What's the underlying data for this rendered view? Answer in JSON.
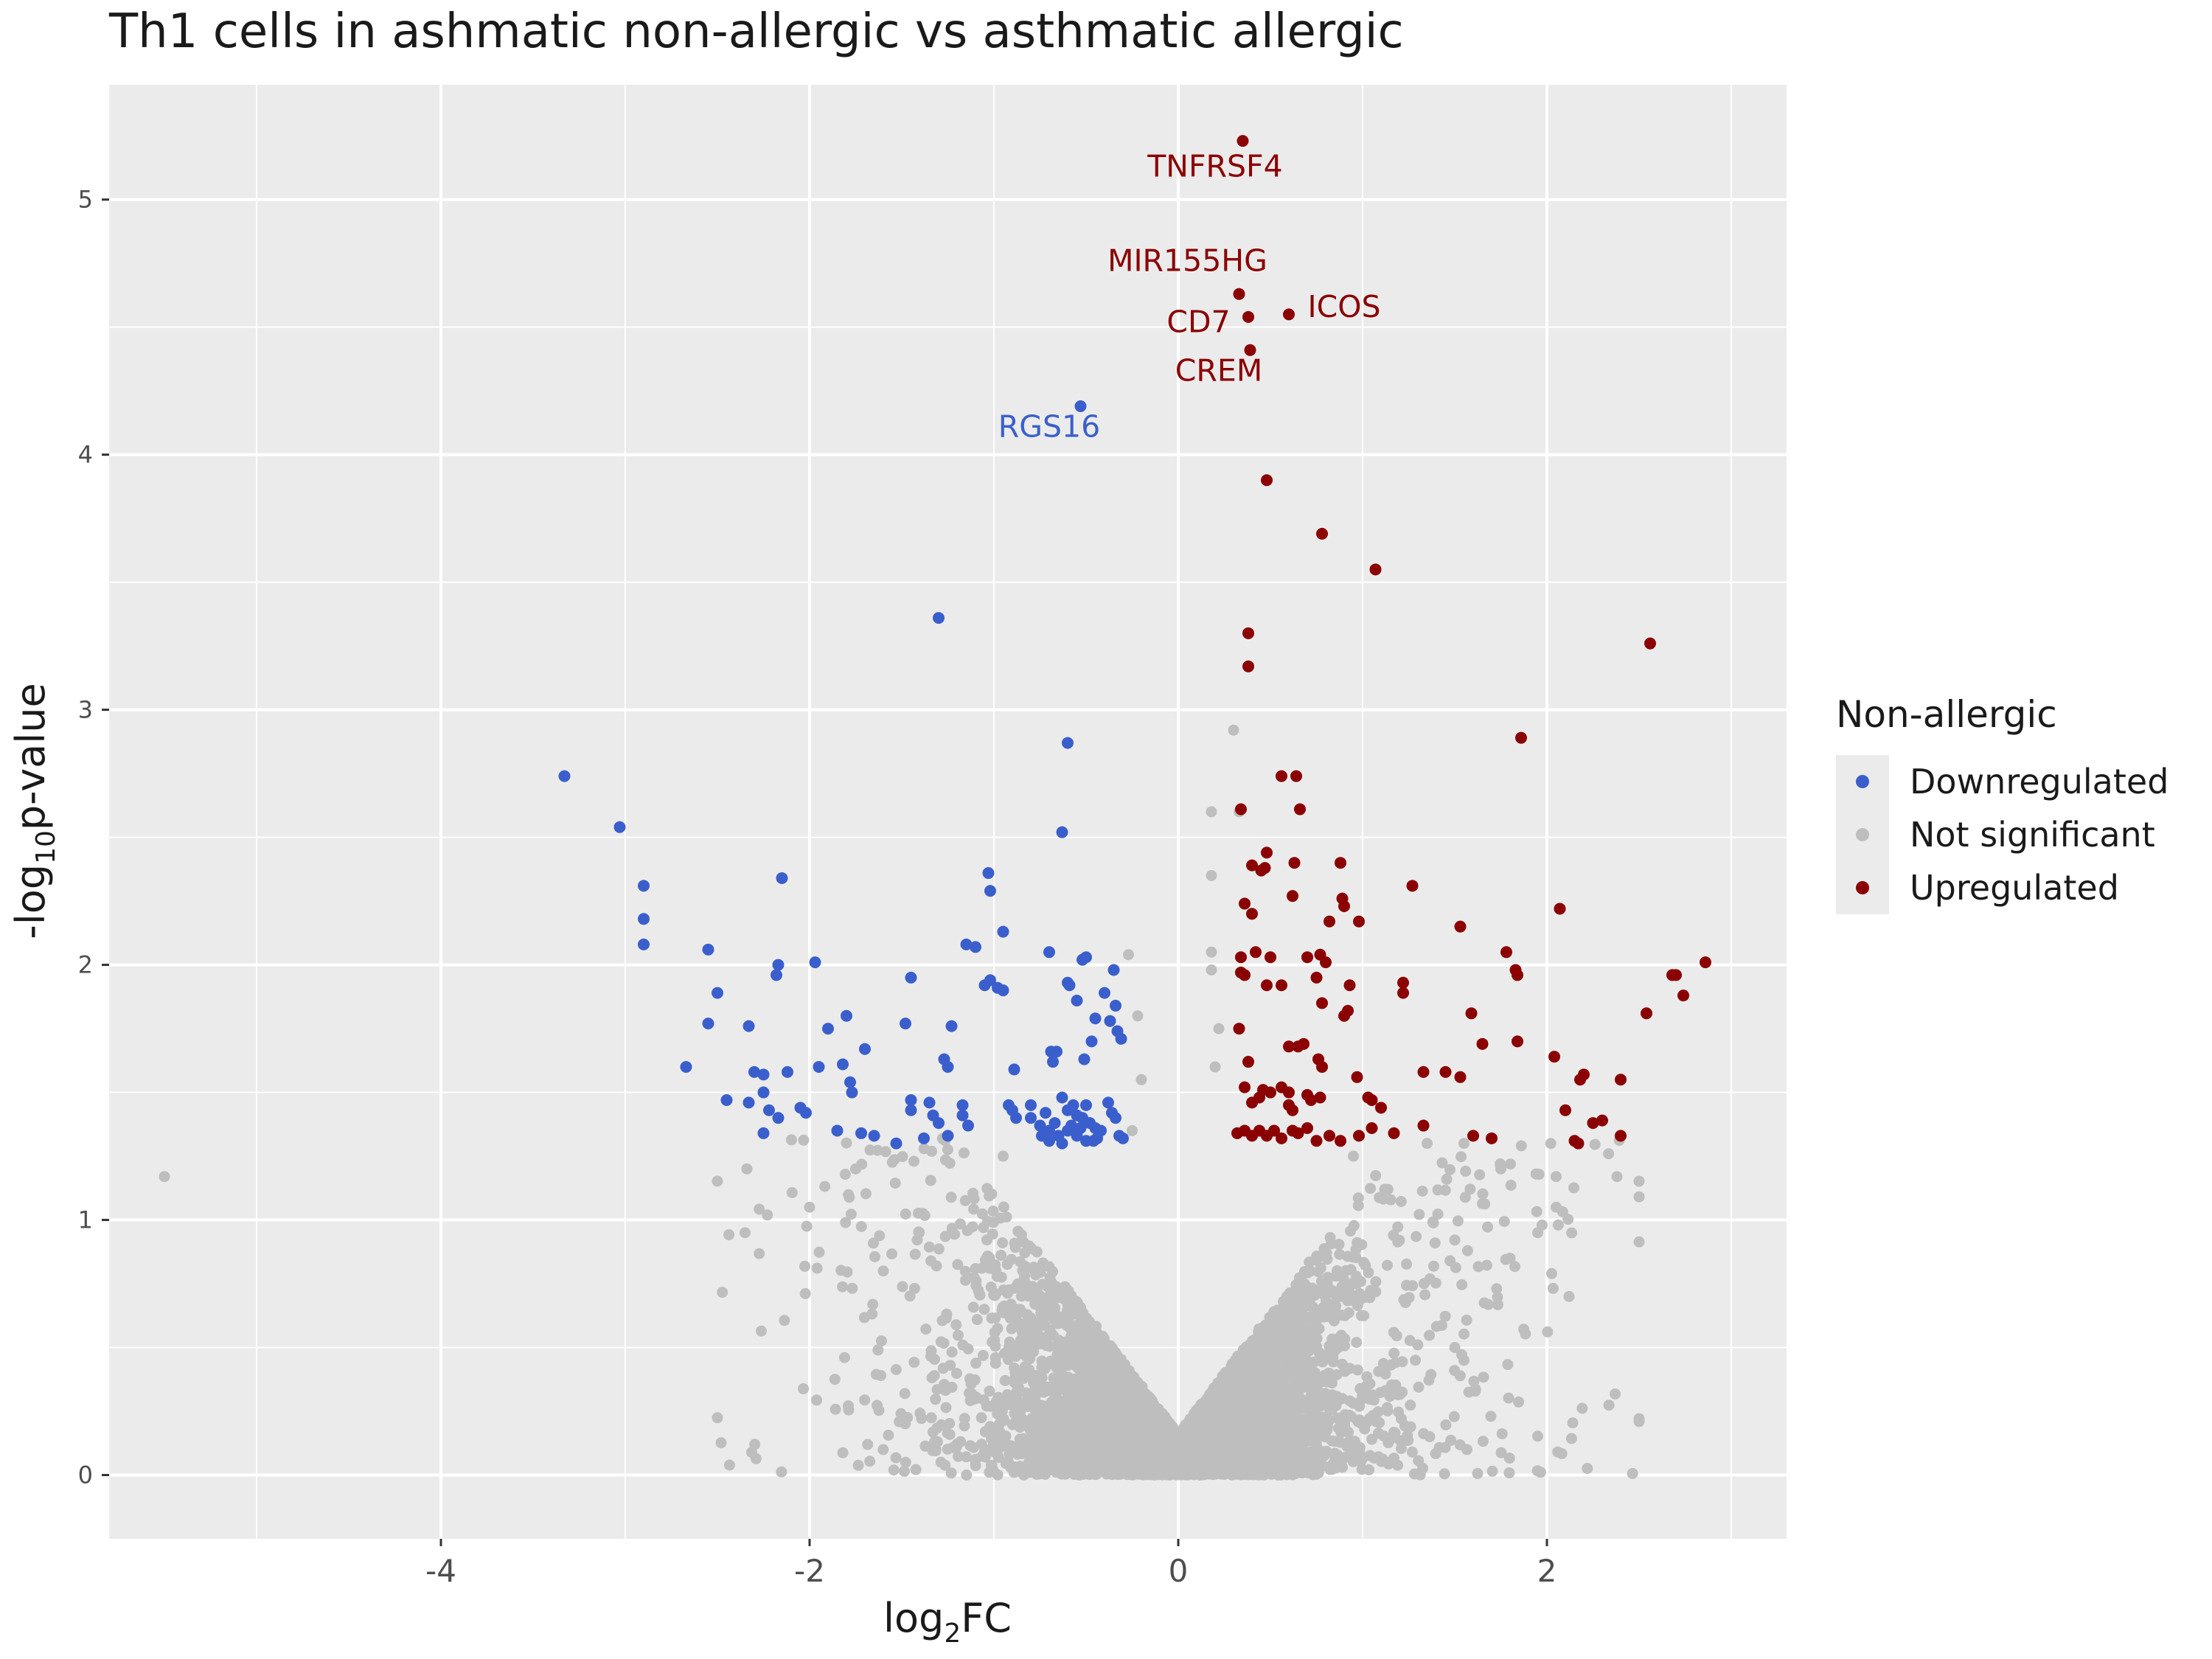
{
  "chart_data": {
    "type": "scatter",
    "title": "Th1 cells in ashmatic non-allergic vs asthmatic allergic",
    "xlabel": {
      "base": "log",
      "sub": "2",
      "rest": "FC"
    },
    "ylabel": {
      "base": "-log",
      "sub": "10",
      "rest": "p-value"
    },
    "xlim": [
      -5.8,
      3.3
    ],
    "ylim": [
      -0.25,
      5.45
    ],
    "x_ticks": [
      -4,
      -2,
      0,
      2
    ],
    "x_tick_labels": [
      "-4",
      "-2",
      "0",
      "2"
    ],
    "y_ticks": [
      0,
      1,
      2,
      3,
      4,
      5
    ],
    "y_tick_labels": [
      "0",
      "1",
      "2",
      "3",
      "4",
      "5"
    ],
    "grid": true,
    "legend": {
      "title": "Non-allergic",
      "position": "right",
      "entries": [
        {
          "label": "Downregulated",
          "color": "#3a5fcd"
        },
        {
          "label": "Not significant",
          "color": "#bebebe"
        },
        {
          "label": "Upregulated",
          "color": "#8b0000"
        }
      ]
    },
    "labels": [
      {
        "text": "TNFRSF4",
        "x": 0.2,
        "y": 5.09,
        "color": "#8b0000"
      },
      {
        "text": "MIR155HG",
        "x": 0.05,
        "y": 4.72,
        "color": "#8b0000"
      },
      {
        "text": "ICOS",
        "x": 0.9,
        "y": 4.54,
        "color": "#8b0000"
      },
      {
        "text": "CD7",
        "x": 0.11,
        "y": 4.48,
        "color": "#8b0000"
      },
      {
        "text": "CREM",
        "x": 0.22,
        "y": 4.29,
        "color": "#8b0000"
      },
      {
        "text": "RGS16",
        "x": -0.7,
        "y": 4.07,
        "color": "#3a5fcd"
      }
    ],
    "series": [
      {
        "name": "Downregulated",
        "color": "#3a5fcd",
        "points": [
          [
            -0.53,
            4.19
          ],
          [
            -1.3,
            3.36
          ],
          [
            -0.6,
            2.87
          ],
          [
            -3.33,
            2.74
          ],
          [
            -3.03,
            2.54
          ],
          [
            -0.63,
            2.52
          ],
          [
            -2.9,
            2.31
          ],
          [
            -2.9,
            2.18
          ],
          [
            -2.9,
            2.08
          ],
          [
            -2.15,
            2.34
          ],
          [
            -1.03,
            2.36
          ],
          [
            -1.02,
            2.29
          ],
          [
            -2.55,
            2.06
          ],
          [
            -2.5,
            1.89
          ],
          [
            -2.17,
            2.0
          ],
          [
            -1.97,
            2.01
          ],
          [
            -2.18,
            1.96
          ],
          [
            -1.45,
            1.95
          ],
          [
            -1.15,
            2.08
          ],
          [
            -1.1,
            2.07
          ],
          [
            -0.95,
            2.13
          ],
          [
            -0.7,
            2.05
          ],
          [
            -0.52,
            2.02
          ],
          [
            -0.5,
            2.03
          ],
          [
            -1.02,
            1.94
          ],
          [
            -0.98,
            1.91
          ],
          [
            -0.95,
            1.9
          ],
          [
            -1.05,
            1.92
          ],
          [
            -0.6,
            1.93
          ],
          [
            -0.59,
            1.92
          ],
          [
            -0.35,
            1.98
          ],
          [
            -0.4,
            1.89
          ],
          [
            -0.55,
            1.86
          ],
          [
            -0.45,
            1.79
          ],
          [
            -0.37,
            1.78
          ],
          [
            -0.34,
            1.84
          ],
          [
            -0.33,
            1.74
          ],
          [
            -0.31,
            1.71
          ],
          [
            -1.8,
            1.8
          ],
          [
            -1.9,
            1.75
          ],
          [
            -1.48,
            1.77
          ],
          [
            -1.23,
            1.76
          ],
          [
            -2.55,
            1.77
          ],
          [
            -2.33,
            1.76
          ],
          [
            -2.67,
            1.6
          ],
          [
            -2.3,
            1.58
          ],
          [
            -2.25,
            1.57
          ],
          [
            -2.12,
            1.58
          ],
          [
            -1.82,
            1.61
          ],
          [
            -1.7,
            1.67
          ],
          [
            -1.95,
            1.6
          ],
          [
            -1.78,
            1.54
          ],
          [
            -1.77,
            1.5
          ],
          [
            -1.27,
            1.63
          ],
          [
            -1.25,
            1.6
          ],
          [
            -0.47,
            1.7
          ],
          [
            -0.66,
            1.66
          ],
          [
            -0.69,
            1.66
          ],
          [
            -0.51,
            1.63
          ],
          [
            -0.68,
            1.62
          ],
          [
            -0.89,
            1.59
          ],
          [
            -2.45,
            1.47
          ],
          [
            -2.33,
            1.46
          ],
          [
            -2.25,
            1.5
          ],
          [
            -2.22,
            1.43
          ],
          [
            -2.05,
            1.44
          ],
          [
            -2.02,
            1.42
          ],
          [
            -2.17,
            1.4
          ],
          [
            -2.25,
            1.34
          ],
          [
            -1.85,
            1.35
          ],
          [
            -1.72,
            1.34
          ],
          [
            -1.65,
            1.33
          ],
          [
            -1.53,
            1.3
          ],
          [
            -1.45,
            1.47
          ],
          [
            -1.45,
            1.43
          ],
          [
            -1.35,
            1.46
          ],
          [
            -1.33,
            1.41
          ],
          [
            -1.3,
            1.38
          ],
          [
            -1.38,
            1.32
          ],
          [
            -1.17,
            1.45
          ],
          [
            -1.17,
            1.41
          ],
          [
            -1.14,
            1.37
          ],
          [
            -1.25,
            1.33
          ],
          [
            -0.92,
            1.45
          ],
          [
            -0.9,
            1.43
          ],
          [
            -0.88,
            1.4
          ],
          [
            -0.8,
            1.4
          ],
          [
            -0.75,
            1.37
          ],
          [
            -0.72,
            1.42
          ],
          [
            -0.7,
            1.35
          ],
          [
            -0.63,
            1.48
          ],
          [
            -0.6,
            1.43
          ],
          [
            -0.57,
            1.45
          ],
          [
            -0.55,
            1.41
          ],
          [
            -0.52,
            1.4
          ],
          [
            -0.5,
            1.45
          ],
          [
            -0.48,
            1.38
          ],
          [
            -0.45,
            1.36
          ],
          [
            -0.42,
            1.35
          ],
          [
            -0.38,
            1.46
          ],
          [
            -0.36,
            1.42
          ],
          [
            -0.34,
            1.4
          ],
          [
            -0.32,
            1.33
          ],
          [
            -0.3,
            1.32
          ],
          [
            -0.55,
            1.33
          ],
          [
            -0.6,
            1.35
          ],
          [
            -0.65,
            1.33
          ],
          [
            -0.7,
            1.31
          ],
          [
            -0.67,
            1.38
          ],
          [
            -0.63,
            1.3
          ],
          [
            -0.74,
            1.33
          ],
          [
            -0.8,
            1.45
          ],
          [
            -0.58,
            1.37
          ],
          [
            -0.53,
            1.36
          ],
          [
            -0.5,
            1.31
          ],
          [
            -0.46,
            1.31
          ],
          [
            -0.44,
            1.32
          ]
        ]
      },
      {
        "name": "Upregulated",
        "color": "#8b0000",
        "points": [
          [
            0.35,
            5.23
          ],
          [
            0.33,
            4.63
          ],
          [
            0.38,
            4.54
          ],
          [
            0.6,
            4.55
          ],
          [
            0.39,
            4.41
          ],
          [
            0.48,
            3.9
          ],
          [
            0.78,
            3.69
          ],
          [
            1.07,
            3.55
          ],
          [
            0.38,
            3.3
          ],
          [
            0.38,
            3.17
          ],
          [
            2.56,
            3.26
          ],
          [
            1.86,
            2.89
          ],
          [
            0.56,
            2.74
          ],
          [
            0.64,
            2.74
          ],
          [
            0.34,
            2.61
          ],
          [
            0.66,
            2.61
          ],
          [
            0.48,
            2.44
          ],
          [
            0.4,
            2.39
          ],
          [
            0.45,
            2.37
          ],
          [
            0.47,
            2.38
          ],
          [
            0.63,
            2.4
          ],
          [
            0.88,
            2.4
          ],
          [
            1.27,
            2.31
          ],
          [
            0.36,
            2.24
          ],
          [
            0.4,
            2.2
          ],
          [
            0.62,
            2.27
          ],
          [
            0.89,
            2.26
          ],
          [
            0.9,
            2.23
          ],
          [
            0.82,
            2.17
          ],
          [
            0.98,
            2.17
          ],
          [
            1.53,
            2.15
          ],
          [
            2.07,
            2.22
          ],
          [
            0.34,
            2.03
          ],
          [
            0.42,
            2.05
          ],
          [
            0.5,
            2.03
          ],
          [
            0.7,
            2.03
          ],
          [
            0.77,
            2.04
          ],
          [
            0.8,
            2.01
          ],
          [
            1.78,
            2.05
          ],
          [
            1.83,
            1.98
          ],
          [
            2.86,
            2.01
          ],
          [
            0.34,
            1.97
          ],
          [
            0.36,
            1.96
          ],
          [
            0.48,
            1.92
          ],
          [
            0.56,
            1.92
          ],
          [
            0.75,
            1.95
          ],
          [
            0.93,
            1.92
          ],
          [
            1.22,
            1.93
          ],
          [
            1.22,
            1.89
          ],
          [
            1.84,
            1.96
          ],
          [
            2.68,
            1.96
          ],
          [
            2.7,
            1.96
          ],
          [
            2.74,
            1.88
          ],
          [
            0.78,
            1.85
          ],
          [
            0.9,
            1.8
          ],
          [
            0.92,
            1.82
          ],
          [
            1.59,
            1.81
          ],
          [
            2.54,
            1.81
          ],
          [
            0.33,
            1.75
          ],
          [
            0.68,
            1.69
          ],
          [
            0.6,
            1.68
          ],
          [
            0.65,
            1.68
          ],
          [
            1.65,
            1.69
          ],
          [
            1.84,
            1.7
          ],
          [
            2.04,
            1.64
          ],
          [
            0.38,
            1.62
          ],
          [
            0.76,
            1.63
          ],
          [
            0.78,
            1.6
          ],
          [
            0.97,
            1.56
          ],
          [
            1.33,
            1.58
          ],
          [
            1.45,
            1.58
          ],
          [
            1.53,
            1.56
          ],
          [
            2.2,
            1.57
          ],
          [
            2.18,
            1.55
          ],
          [
            2.4,
            1.55
          ],
          [
            0.36,
            1.52
          ],
          [
            0.46,
            1.51
          ],
          [
            0.5,
            1.5
          ],
          [
            0.56,
            1.52
          ],
          [
            0.6,
            1.5
          ],
          [
            0.7,
            1.49
          ],
          [
            0.77,
            1.48
          ],
          [
            1.03,
            1.48
          ],
          [
            1.05,
            1.47
          ],
          [
            1.1,
            1.44
          ],
          [
            0.4,
            1.46
          ],
          [
            0.44,
            1.48
          ],
          [
            0.6,
            1.45
          ],
          [
            0.62,
            1.43
          ],
          [
            0.72,
            1.47
          ],
          [
            2.1,
            1.43
          ],
          [
            2.25,
            1.38
          ],
          [
            2.3,
            1.39
          ],
          [
            0.32,
            1.34
          ],
          [
            0.36,
            1.35
          ],
          [
            0.4,
            1.33
          ],
          [
            0.44,
            1.35
          ],
          [
            0.48,
            1.33
          ],
          [
            0.52,
            1.35
          ],
          [
            0.56,
            1.32
          ],
          [
            0.62,
            1.35
          ],
          [
            0.65,
            1.34
          ],
          [
            0.7,
            1.36
          ],
          [
            0.75,
            1.31
          ],
          [
            0.82,
            1.33
          ],
          [
            0.88,
            1.31
          ],
          [
            0.98,
            1.33
          ],
          [
            1.05,
            1.36
          ],
          [
            1.17,
            1.34
          ],
          [
            1.33,
            1.37
          ],
          [
            1.6,
            1.33
          ],
          [
            1.7,
            1.32
          ],
          [
            2.15,
            1.31
          ],
          [
            2.17,
            1.3
          ],
          [
            2.4,
            1.33
          ]
        ]
      }
    ],
    "not_significant": {
      "name": "Not significant",
      "color": "#bebebe",
      "approximate_point_count": 6000,
      "outliers": [
        [
          -5.5,
          1.17
        ],
        [
          0.3,
          2.92
        ],
        [
          0.18,
          2.6
        ],
        [
          0.18,
          2.35
        ],
        [
          0.18,
          2.05
        ],
        [
          0.18,
          1.98
        ],
        [
          -0.27,
          2.04
        ],
        [
          0.33,
          2.6
        ],
        [
          -2.35,
          0.95
        ],
        [
          2.12,
          0.7
        ],
        [
          1.55,
          0.45
        ],
        [
          -0.85,
          0.12
        ],
        [
          1.05,
          0.14
        ],
        [
          1.2,
          0.92
        ],
        [
          1.95,
          0.95
        ],
        [
          2.38,
          1.17
        ],
        [
          2.05,
          1.17
        ],
        [
          -2.34,
          1.2
        ],
        [
          1.35,
          1.3
        ],
        [
          1.55,
          1.3
        ],
        [
          0.95,
          1.25
        ],
        [
          -0.95,
          1.25
        ],
        [
          -0.25,
          1.35
        ],
        [
          -0.22,
          1.8
        ],
        [
          0.22,
          1.75
        ],
        [
          -0.2,
          1.55
        ],
        [
          0.2,
          1.6
        ],
        [
          1.75,
          1.2
        ],
        [
          -1.75,
          1.2
        ],
        [
          1.12,
          1.12
        ],
        [
          0.55,
          0.05
        ],
        [
          -0.3,
          0.08
        ],
        [
          0.75,
          0.3
        ],
        [
          -0.5,
          0.35
        ],
        [
          1.5,
          0.5
        ],
        [
          -1.6,
          0.8
        ],
        [
          1.8,
          0.85
        ],
        [
          2.05,
          1.05
        ],
        [
          -2.0,
          1.05
        ]
      ]
    }
  }
}
